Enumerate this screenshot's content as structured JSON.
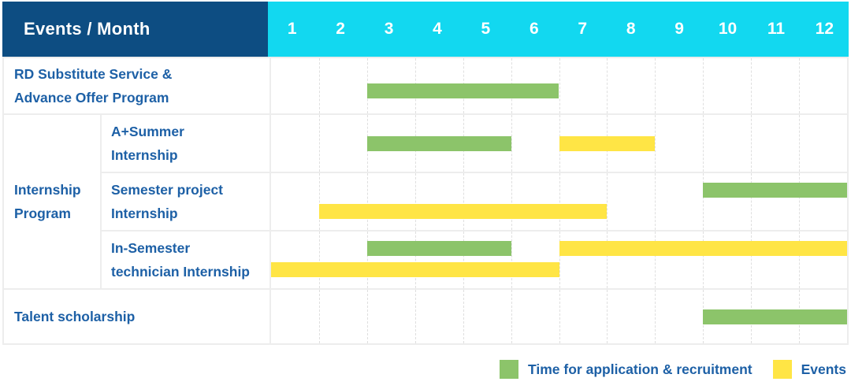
{
  "header": {
    "title": "Events / Month",
    "months": [
      "1",
      "2",
      "3",
      "4",
      "5",
      "6",
      "7",
      "8",
      "9",
      "10",
      "11",
      "12"
    ]
  },
  "group": {
    "label": "Internship\nProgram"
  },
  "rows": [
    {
      "id": "rd-substitute-service",
      "type": "full",
      "label": "RD Substitute Service &\nAdvance Offer Program",
      "bars": [
        {
          "color": "green",
          "start": 3,
          "end": 6,
          "lane": "midlow"
        }
      ]
    },
    {
      "id": "a-summer-internship",
      "type": "sub",
      "label": "A+Summer\nInternship",
      "bars": [
        {
          "color": "green",
          "start": 3,
          "end": 5,
          "lane": "center"
        },
        {
          "color": "yellow",
          "start": 7,
          "end": 8,
          "lane": "center"
        }
      ]
    },
    {
      "id": "semester-project-internship",
      "type": "sub",
      "label": "Semester project\nInternship",
      "bars": [
        {
          "color": "green",
          "start": 10,
          "end": 12,
          "lane": "upper"
        },
        {
          "color": "yellow",
          "start": 2,
          "end": 7,
          "lane": "lower"
        }
      ]
    },
    {
      "id": "in-semester-technician-internship",
      "type": "sub",
      "label": "In-Semester\ntechnician Internship",
      "bars": [
        {
          "color": "green",
          "start": 3,
          "end": 5,
          "lane": "upper"
        },
        {
          "color": "yellow",
          "start": 7,
          "end": 12,
          "lane": "upper"
        },
        {
          "color": "yellow",
          "start": 1,
          "end": 6,
          "lane": "lower"
        }
      ]
    },
    {
      "id": "talent-scholarship",
      "type": "full",
      "label": "Talent scholarship",
      "bars": [
        {
          "color": "green",
          "start": 10,
          "end": 12,
          "lane": "center"
        }
      ]
    }
  ],
  "legend": {
    "items": [
      {
        "color": "green",
        "label": "Time for application & recruitment"
      },
      {
        "color": "yellow",
        "label": "Events"
      }
    ]
  },
  "colors": {
    "green": "#8cc46a",
    "yellow": "#ffe545",
    "header_bg": "#0d4d82",
    "months_bg": "#12d8f0",
    "label_text": "#1d60a6"
  },
  "chart_data": {
    "type": "bar",
    "subtype": "gantt-timeline",
    "title": "Events / Month",
    "x_axis": {
      "label": "Month",
      "ticks": [
        1,
        2,
        3,
        4,
        5,
        6,
        7,
        8,
        9,
        10,
        11,
        12
      ],
      "range": [
        1,
        12
      ],
      "grid": "dashed-vertical"
    },
    "legend_position": "bottom-right",
    "series_legend": [
      {
        "name": "Time for application & recruitment",
        "color": "#8cc46a"
      },
      {
        "name": "Events",
        "color": "#ffe545"
      }
    ],
    "tasks": [
      {
        "event": "RD Substitute Service & Advance Offer Program",
        "group": null,
        "bars": [
          {
            "series": "Time for application & recruitment",
            "start_month": 3,
            "end_month": 6
          }
        ]
      },
      {
        "event": "A+Summer Internship",
        "group": "Internship Program",
        "bars": [
          {
            "series": "Time for application & recruitment",
            "start_month": 3,
            "end_month": 5
          },
          {
            "series": "Events",
            "start_month": 7,
            "end_month": 8
          }
        ]
      },
      {
        "event": "Semester project Internship",
        "group": "Internship Program",
        "bars": [
          {
            "series": "Time for application & recruitment",
            "start_month": 10,
            "end_month": 12
          },
          {
            "series": "Events",
            "start_month": 2,
            "end_month": 7
          }
        ]
      },
      {
        "event": "In-Semester technician Internship",
        "group": "Internship Program",
        "bars": [
          {
            "series": "Time for application & recruitment",
            "start_month": 3,
            "end_month": 5
          },
          {
            "series": "Events",
            "start_month": 7,
            "end_month": 12
          },
          {
            "series": "Events",
            "start_month": 1,
            "end_month": 6
          }
        ]
      },
      {
        "event": "Talent scholarship",
        "group": null,
        "bars": [
          {
            "series": "Time for application & recruitment",
            "start_month": 10,
            "end_month": 12
          }
        ]
      }
    ]
  }
}
